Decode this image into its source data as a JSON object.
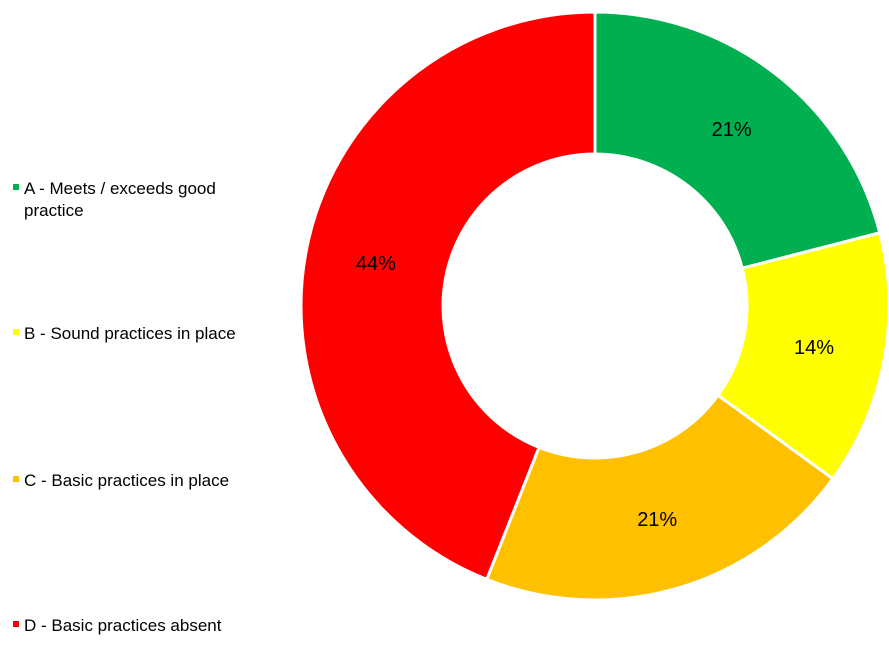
{
  "chart_data": {
    "type": "pie",
    "donut": true,
    "legend_position": "left",
    "slices": [
      {
        "label": "A - Meets / exceeds good practice",
        "value": 21,
        "value_label": "21%",
        "color": "#00b050"
      },
      {
        "label": "B - Sound practices in place",
        "value": 14,
        "value_label": "14%",
        "color": "#ffff00"
      },
      {
        "label": "C - Basic practices in place",
        "value": 21,
        "value_label": "21%",
        "color": "#ffc000"
      },
      {
        "label": "D - Basic practices absent",
        "value": 44,
        "value_label": "44%",
        "color": "#ff0000"
      }
    ]
  }
}
